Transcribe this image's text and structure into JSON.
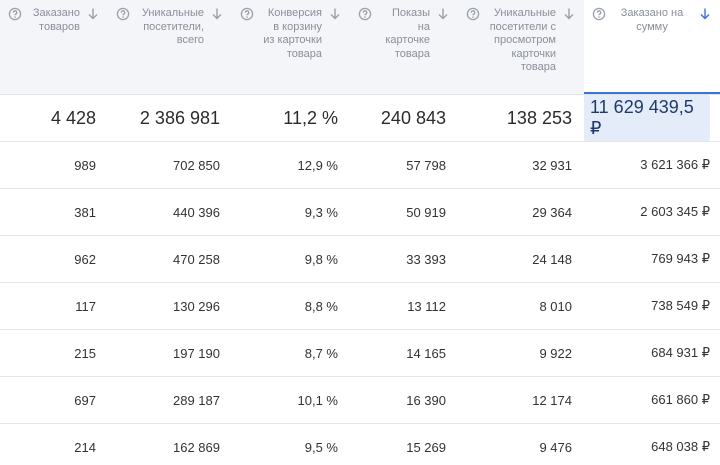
{
  "table": {
    "headers": [
      "Заказано товаров",
      "Уникальные посетители, всего",
      "Конверсия в корзину из карточки товара",
      "Показы на карточке товара",
      "Уникальные посетители с просмотром карточки товара",
      "Заказано на сумму"
    ],
    "totals": [
      "4 428",
      "2 386 981",
      "11,2 %",
      "240 843",
      "138 253",
      "11 629 439,5 ₽"
    ],
    "rows": [
      [
        "989",
        "702 850",
        "12,9 %",
        "57 798",
        "32 931",
        "3 621 366 ₽"
      ],
      [
        "381",
        "440 396",
        "9,3 %",
        "50 919",
        "29 364",
        "2 603 345 ₽"
      ],
      [
        "962",
        "470 258",
        "9,8 %",
        "33 393",
        "24 148",
        "769 943 ₽"
      ],
      [
        "117",
        "130 296",
        "8,8 %",
        "13 112",
        "8 010",
        "738 549 ₽"
      ],
      [
        "215",
        "197 190",
        "8,7 %",
        "14 165",
        "9 922",
        "684 931 ₽"
      ],
      [
        "697",
        "289 187",
        "10,1 %",
        "16 390",
        "12 174",
        "661 860 ₽"
      ],
      [
        "214",
        "162 869",
        "9,5 %",
        "15 269",
        "9 476",
        "648 038 ₽"
      ]
    ]
  }
}
